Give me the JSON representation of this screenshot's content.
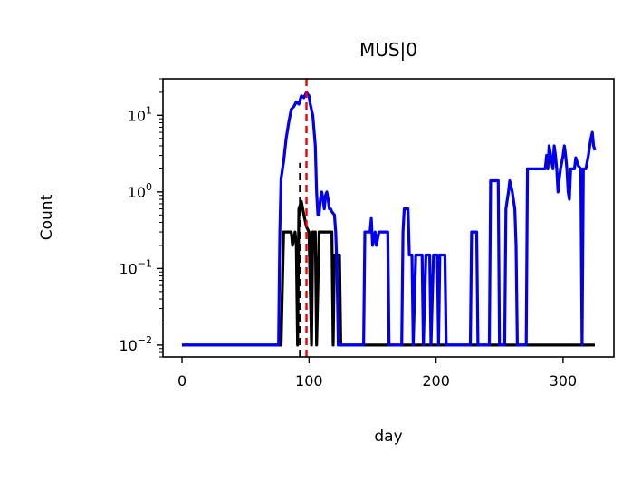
{
  "chart_data": {
    "type": "line",
    "title": "MUS|0",
    "xlabel": "day",
    "ylabel": "Count",
    "xscale": "linear",
    "yscale": "log",
    "xlim": [
      -15,
      340
    ],
    "ylim": [
      0.007,
      30
    ],
    "xticks": [
      0,
      100,
      200,
      300
    ],
    "yticks": [
      {
        "value": 0.01,
        "base": "10",
        "exp": "−2"
      },
      {
        "value": 0.1,
        "base": "10",
        "exp": "−1"
      },
      {
        "value": 1,
        "base": "10",
        "exp": "0"
      },
      {
        "value": 10,
        "base": "10",
        "exp": "1"
      }
    ],
    "grid": false,
    "series": [
      {
        "color": "#000000",
        "style": "solid",
        "points": [
          [
            0,
            0.01
          ],
          [
            78,
            0.01
          ],
          [
            80,
            0.3
          ],
          [
            86,
            0.3
          ],
          [
            87,
            0.2
          ],
          [
            89,
            0.3
          ],
          [
            90,
            0.2
          ],
          [
            91,
            0.01
          ],
          [
            92,
            0.6
          ],
          [
            94,
            0.75
          ],
          [
            96,
            0.5
          ],
          [
            98,
            0.35
          ],
          [
            100,
            0.3
          ],
          [
            102,
            0.01
          ],
          [
            103,
            0.3
          ],
          [
            105,
            0.3
          ],
          [
            106,
            0.01
          ],
          [
            108,
            0.3
          ],
          [
            118,
            0.3
          ],
          [
            119,
            0.01
          ],
          [
            120,
            0.15
          ],
          [
            124,
            0.15
          ],
          [
            125,
            0.01
          ],
          [
            325,
            0.01
          ]
        ]
      },
      {
        "color": "#0000ee",
        "style": "solid",
        "points": [
          [
            0,
            0.01
          ],
          [
            76,
            0.01
          ],
          [
            77,
            0.3
          ],
          [
            78,
            1.5
          ],
          [
            80,
            2.5
          ],
          [
            82,
            5
          ],
          [
            84,
            8
          ],
          [
            86,
            12
          ],
          [
            88,
            13
          ],
          [
            90,
            15
          ],
          [
            92,
            14
          ],
          [
            94,
            18
          ],
          [
            96,
            17
          ],
          [
            98,
            20
          ],
          [
            100,
            18
          ],
          [
            101,
            14
          ],
          [
            103,
            10
          ],
          [
            105,
            4
          ],
          [
            106,
            1
          ],
          [
            107,
            0.5
          ],
          [
            108,
            0.5
          ],
          [
            109,
            0.8
          ],
          [
            110,
            1
          ],
          [
            111,
            0.8
          ],
          [
            112,
            0.6
          ],
          [
            113,
            0.9
          ],
          [
            114,
            1
          ],
          [
            115,
            0.8
          ],
          [
            116,
            0.6
          ],
          [
            117,
            0.6
          ],
          [
            118,
            0.55
          ],
          [
            120,
            0.5
          ],
          [
            121,
            0.3
          ],
          [
            122,
            0.1
          ],
          [
            123,
            0.01
          ],
          [
            143,
            0.01
          ],
          [
            144,
            0.3
          ],
          [
            148,
            0.3
          ],
          [
            149,
            0.45
          ],
          [
            150,
            0.2
          ],
          [
            152,
            0.3
          ],
          [
            153,
            0.2
          ],
          [
            155,
            0.3
          ],
          [
            162,
            0.3
          ],
          [
            163,
            0.01
          ],
          [
            173,
            0.01
          ],
          [
            174,
            0.3
          ],
          [
            175,
            0.6
          ],
          [
            178,
            0.6
          ],
          [
            179,
            0.15
          ],
          [
            181,
            0.15
          ],
          [
            182,
            0.01
          ],
          [
            184,
            0.15
          ],
          [
            189,
            0.15
          ],
          [
            190,
            0.01
          ],
          [
            192,
            0.15
          ],
          [
            195,
            0.15
          ],
          [
            196,
            0.01
          ],
          [
            198,
            0.15
          ],
          [
            201,
            0.15
          ],
          [
            202,
            0.01
          ],
          [
            203,
            0.15
          ],
          [
            207,
            0.15
          ],
          [
            208,
            0.01
          ],
          [
            227,
            0.01
          ],
          [
            228,
            0.3
          ],
          [
            232,
            0.3
          ],
          [
            233,
            0.01
          ],
          [
            242,
            0.01
          ],
          [
            243,
            1.4
          ],
          [
            249,
            1.4
          ],
          [
            250,
            0.01
          ],
          [
            254,
            0.01
          ],
          [
            255,
            0.6
          ],
          [
            257,
            1
          ],
          [
            258,
            1.4
          ],
          [
            260,
            1
          ],
          [
            262,
            0.6
          ],
          [
            263,
            0.2
          ],
          [
            264,
            0.01
          ],
          [
            271,
            0.01
          ],
          [
            272,
            2
          ],
          [
            286,
            2
          ],
          [
            287,
            3
          ],
          [
            288,
            2
          ],
          [
            289,
            4
          ],
          [
            292,
            2
          ],
          [
            293,
            4
          ],
          [
            294,
            3
          ],
          [
            295,
            2
          ],
          [
            296,
            1
          ],
          [
            297,
            1.5
          ],
          [
            298,
            2
          ],
          [
            300,
            3
          ],
          [
            301,
            4
          ],
          [
            302,
            3
          ],
          [
            303,
            2
          ],
          [
            304,
            1
          ],
          [
            305,
            0.8
          ],
          [
            306,
            2
          ],
          [
            309,
            2
          ],
          [
            310,
            2.8
          ],
          [
            312,
            2.2
          ],
          [
            314,
            2
          ],
          [
            315,
            0.01
          ],
          [
            316,
            2
          ],
          [
            318,
            2
          ],
          [
            320,
            3
          ],
          [
            321,
            4
          ],
          [
            322,
            5
          ],
          [
            323,
            6
          ],
          [
            324,
            4
          ],
          [
            325,
            3.5
          ]
        ]
      }
    ],
    "vlines": [
      {
        "x": 93,
        "y_top": 2.4,
        "color": "#000000",
        "style": "dashed"
      },
      {
        "x": 98,
        "y_top": 30,
        "color": "#ee0000",
        "style": "dashed"
      }
    ]
  }
}
